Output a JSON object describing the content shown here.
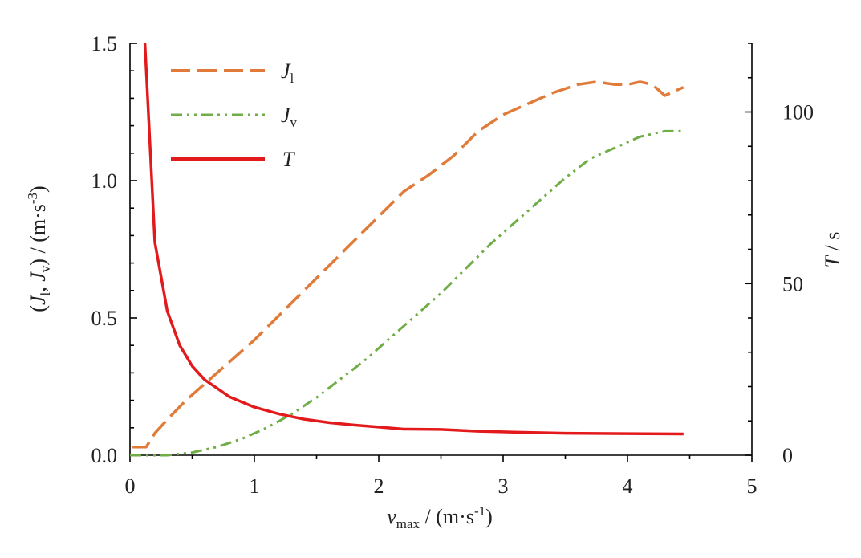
{
  "chart_data": {
    "type": "line",
    "x_axis": {
      "label_var": "v",
      "label_sub": "max",
      "label_unit": " / (m·s",
      "label_exp": "-1",
      "label_close": ")",
      "range": [
        0,
        5
      ],
      "ticks": [
        "0",
        "1",
        "2",
        "3",
        "4",
        "5"
      ]
    },
    "y_left": {
      "label_open": "(",
      "label_j1": "J",
      "label_j1_sub": "l",
      "label_sep": ", ",
      "label_jv": "J",
      "label_jv_sub": "v",
      "label_mid": ")  /  (m·s",
      "label_exp": "-3",
      "label_close": ")",
      "range": [
        0,
        1.5
      ],
      "ticks": [
        "0.0",
        "0.5",
        "1.0",
        "1.5"
      ]
    },
    "y_right": {
      "label_var": "T",
      "label_unit": " / s",
      "range": [
        0,
        120
      ],
      "ticks": [
        "0",
        "50",
        "100"
      ]
    },
    "legend": {
      "placement": "top-left",
      "entries": [
        {
          "var": "J",
          "sub": "l"
        },
        {
          "var": "J",
          "sub": "v"
        },
        {
          "var": "T",
          "sub": ""
        }
      ]
    },
    "series": [
      {
        "axis": "left",
        "style": "dashed",
        "color": "#e07b39",
        "x": [
          0.02,
          0.13,
          0.2,
          0.3,
          0.45,
          0.6,
          0.8,
          1.0,
          1.2,
          1.4,
          1.6,
          1.8,
          2.0,
          2.2,
          2.4,
          2.6,
          2.8,
          3.0,
          3.2,
          3.4,
          3.6,
          3.75,
          3.9,
          4.0,
          4.1,
          4.2,
          4.3,
          4.35,
          4.45
        ],
        "y": [
          0.03,
          0.03,
          0.08,
          0.13,
          0.2,
          0.26,
          0.34,
          0.42,
          0.51,
          0.6,
          0.69,
          0.78,
          0.87,
          0.96,
          1.02,
          1.09,
          1.18,
          1.24,
          1.28,
          1.32,
          1.35,
          1.36,
          1.35,
          1.35,
          1.36,
          1.35,
          1.31,
          1.32,
          1.34
        ]
      },
      {
        "axis": "left",
        "style": "dash-dot-dot",
        "color": "#70ad47",
        "x": [
          0.0,
          0.3,
          0.5,
          0.7,
          0.9,
          1.1,
          1.3,
          1.5,
          1.7,
          1.9,
          2.1,
          2.3,
          2.5,
          2.7,
          2.9,
          3.1,
          3.3,
          3.5,
          3.7,
          3.9,
          4.1,
          4.3,
          4.45
        ],
        "y": [
          0.0,
          0.0,
          0.01,
          0.03,
          0.06,
          0.1,
          0.15,
          0.21,
          0.28,
          0.35,
          0.43,
          0.51,
          0.59,
          0.68,
          0.77,
          0.85,
          0.93,
          1.01,
          1.08,
          1.12,
          1.16,
          1.18,
          1.18
        ]
      },
      {
        "axis": "right",
        "style": "solid",
        "color": "#e31a1c",
        "x": [
          0.12,
          0.2,
          0.3,
          0.4,
          0.5,
          0.6,
          0.7,
          0.8,
          0.9,
          1.0,
          1.2,
          1.4,
          1.6,
          1.8,
          2.0,
          2.2,
          2.5,
          2.8,
          3.0,
          3.5,
          4.0,
          4.45
        ],
        "y": [
          120,
          62,
          42,
          32,
          26,
          22,
          19.5,
          17,
          15.5,
          14,
          12,
          10.5,
          9.5,
          8.8,
          8.2,
          7.6,
          7.5,
          7,
          6.8,
          6.4,
          6.3,
          6.2
        ]
      }
    ]
  }
}
